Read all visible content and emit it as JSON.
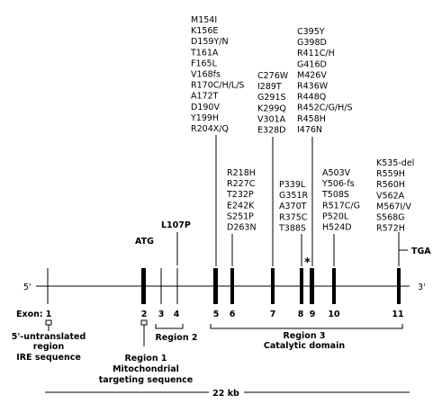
{
  "end_left": "5'",
  "end_right": "3'",
  "exon_label": "Exon:",
  "exon_numbers": [
    "1",
    "2",
    "3",
    "4",
    "5",
    "6",
    "7",
    "8",
    "9",
    "10",
    "11"
  ],
  "landmarks": {
    "atg": "ATG",
    "l107p": "L107P",
    "tga": "TGA",
    "star": "*"
  },
  "mutation_groups": [
    [
      "M154I",
      "K156E",
      "D159Y/N",
      "T161A",
      "F165L",
      "V168fs",
      "R170C/H/L/S",
      "A172T",
      "D190V",
      "Y199H",
      "R204X/Q"
    ],
    [
      "C276W",
      "I289T",
      "G291S",
      "K299Q",
      "V301A",
      "E328D"
    ],
    [
      "C395Y",
      "G398D",
      "R411C/H",
      "G416D",
      "M426V",
      "R436W",
      "R448Q",
      "R452C/G/H/S",
      "R458H",
      "I476N"
    ],
    [
      "R218H",
      "R227C",
      "T232P",
      "E242K",
      "S251P",
      "D263N"
    ],
    [
      "P339L",
      "G351R",
      "A370T",
      "R375C",
      "T388S"
    ],
    [
      "A503V",
      "Y506-fs",
      "T508S",
      "R517C/G",
      "P520L",
      "H524D"
    ],
    [
      "K535-del",
      "R559H",
      "R560H",
      "V562A",
      "M567I/V",
      "S568G",
      "R572H"
    ]
  ],
  "regions": {
    "utr": [
      "5'-untranslated",
      "region",
      "IRE sequence"
    ],
    "region1": [
      "Region 1",
      "Mitochondrial",
      "targeting sequence"
    ],
    "region2": [
      "Region 2"
    ],
    "region3": [
      "Region 3",
      "Catalytic domain"
    ]
  },
  "scale_label": "22 kb"
}
